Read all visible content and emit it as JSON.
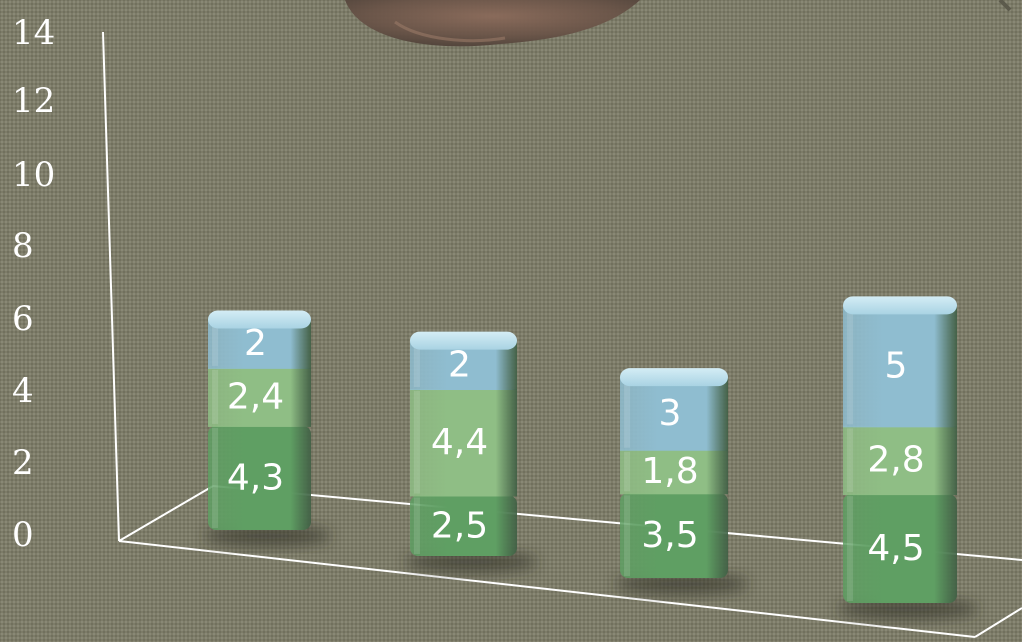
{
  "chart_data": {
    "type": "bar",
    "stacked": true,
    "view": "3d-perspective",
    "categories": [
      "",
      "",
      "",
      ""
    ],
    "series": [
      {
        "values": [
          4.3,
          2.5,
          3.5,
          4.5
        ],
        "value_labels": [
          "4,3",
          "2,5",
          "3,5",
          "4,5"
        ],
        "color": "#5f9f63"
      },
      {
        "values": [
          2.4,
          4.4,
          1.8,
          2.8
        ],
        "value_labels": [
          "2,4",
          "4,4",
          "1,8",
          "2,8"
        ],
        "color": "#8fbe85"
      },
      {
        "values": [
          2,
          2,
          3,
          5
        ],
        "value_labels": [
          "2",
          "2",
          "3",
          "5"
        ],
        "color": "#8fbdd0"
      }
    ],
    "ylim": [
      0,
      14
    ],
    "yticks": [
      0,
      2,
      4,
      6,
      8,
      10,
      12,
      14
    ],
    "ytick_labels": [
      "0",
      "2",
      "4",
      "6",
      "8",
      "10",
      "12",
      "14"
    ],
    "grid": false,
    "legend": "none"
  },
  "colors": {
    "background": "#7d7c68",
    "axis_lines": "#ffffff",
    "bar_top_cap": "#a9d3e3",
    "text": "#ffffff"
  }
}
